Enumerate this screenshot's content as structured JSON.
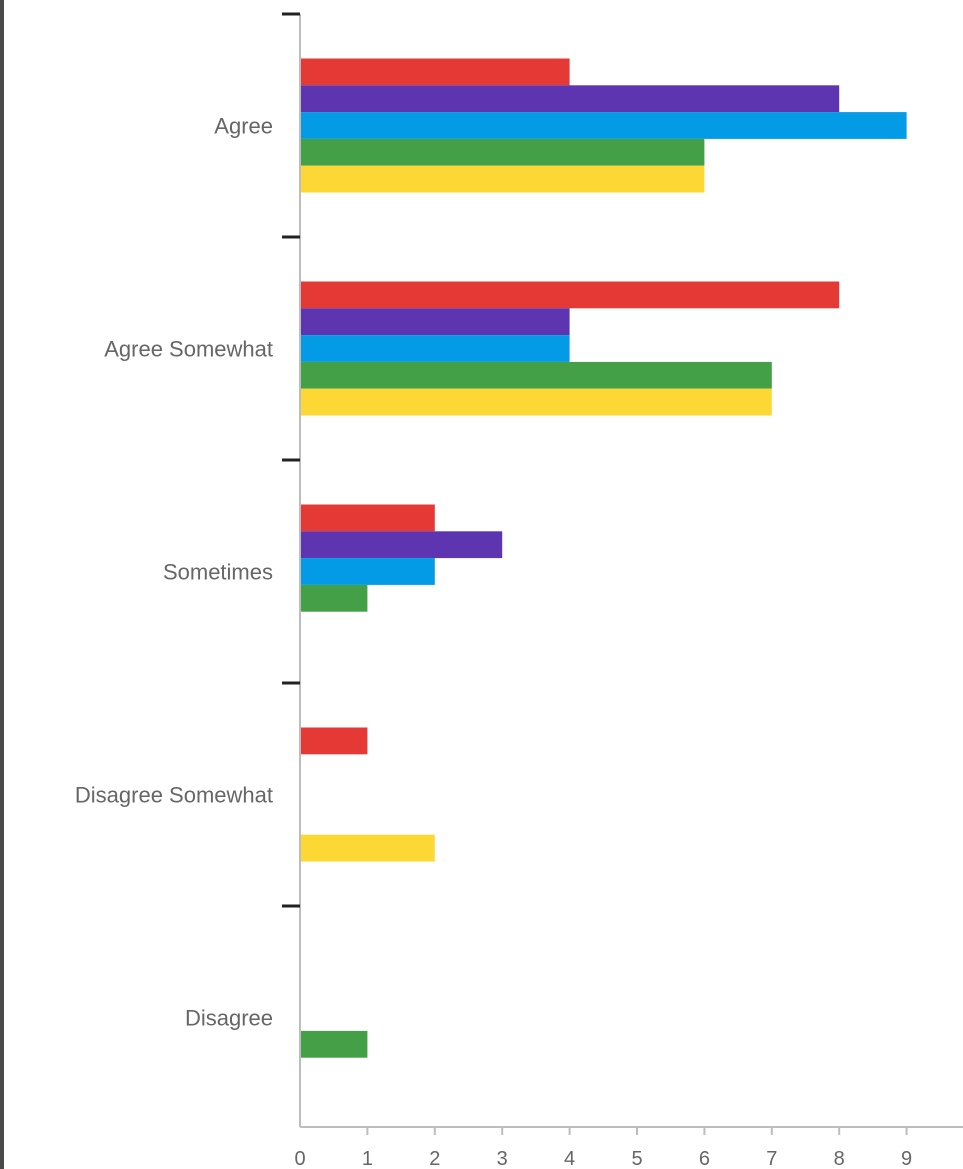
{
  "chart_data": {
    "type": "bar",
    "orientation": "horizontal",
    "categories": [
      "Agree",
      "Agree Somewhat",
      "Sometimes",
      "Disagree Somewhat",
      "Disagree"
    ],
    "series": [
      {
        "color": "#e53935",
        "values": [
          4,
          8,
          2,
          1,
          0
        ]
      },
      {
        "color": "#5e35b1",
        "values": [
          8,
          4,
          3,
          0,
          0
        ]
      },
      {
        "color": "#039be5",
        "values": [
          9,
          4,
          2,
          0,
          0
        ]
      },
      {
        "color": "#43a047",
        "values": [
          6,
          7,
          1,
          0,
          1
        ]
      },
      {
        "color": "#fdd835",
        "values": [
          6,
          7,
          0,
          2,
          0
        ]
      }
    ],
    "xlim": [
      0,
      9.8
    ],
    "xticks": [
      "0",
      "1",
      "2",
      "3",
      "4",
      "5",
      "6",
      "7",
      "8",
      "9"
    ],
    "grid": false,
    "legend": "none",
    "title": "",
    "xlabel": "",
    "ylabel": ""
  }
}
